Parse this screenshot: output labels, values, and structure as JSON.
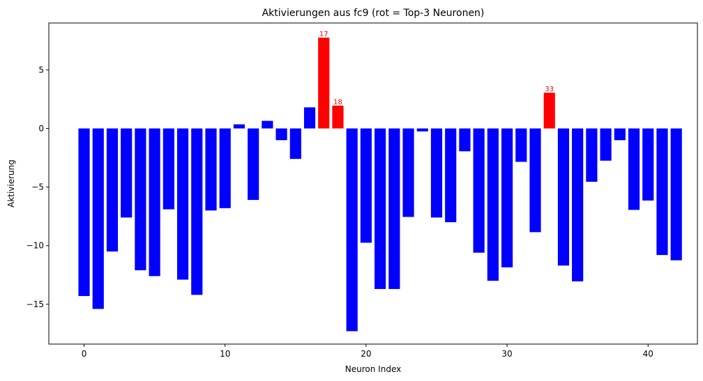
{
  "chart_data": {
    "type": "bar",
    "title": "Aktivierungen aus fc9 (rot = Top-3 Neuronen)",
    "xlabel": "Neuron Index",
    "ylabel": "Aktivierung",
    "x": [
      0,
      1,
      2,
      3,
      4,
      5,
      6,
      7,
      8,
      9,
      10,
      11,
      12,
      13,
      14,
      15,
      16,
      17,
      18,
      19,
      20,
      21,
      22,
      23,
      24,
      25,
      26,
      27,
      28,
      29,
      30,
      31,
      32,
      33,
      34,
      35,
      36,
      37,
      38,
      39,
      40,
      41,
      42
    ],
    "values": [
      -14.3,
      -15.4,
      -10.5,
      -7.6,
      -12.1,
      -12.6,
      -6.9,
      -12.9,
      -14.2,
      -7.0,
      -6.8,
      0.35,
      -6.1,
      0.65,
      -1.0,
      -2.6,
      1.8,
      7.75,
      1.95,
      -17.3,
      -9.75,
      -13.7,
      -13.7,
      -7.55,
      -0.25,
      -7.6,
      -8.0,
      -1.95,
      -10.6,
      -13.0,
      -11.85,
      -2.85,
      -8.85,
      3.05,
      -11.7,
      -13.05,
      -4.55,
      -2.75,
      -1.0,
      -6.95,
      -6.15,
      -10.8,
      -11.25
    ],
    "highlight": [
      17,
      18,
      33
    ],
    "highlight_labels": [
      "17",
      "18",
      "33"
    ],
    "colors": {
      "default": "#0000ff",
      "highlight": "#ff0000"
    },
    "xlim": [
      -2.5,
      43.5
    ],
    "ylim": [
      -18.4,
      9.0
    ],
    "xticks": [
      0,
      10,
      20,
      30,
      40
    ],
    "xtick_labels": [
      "0",
      "10",
      "20",
      "30",
      "40"
    ],
    "yticks": [
      -15,
      -10,
      -5,
      0,
      5
    ],
    "ytick_labels": [
      "−15",
      "−10",
      "−5",
      "0",
      "5"
    ],
    "grid": false,
    "legend": "none"
  }
}
